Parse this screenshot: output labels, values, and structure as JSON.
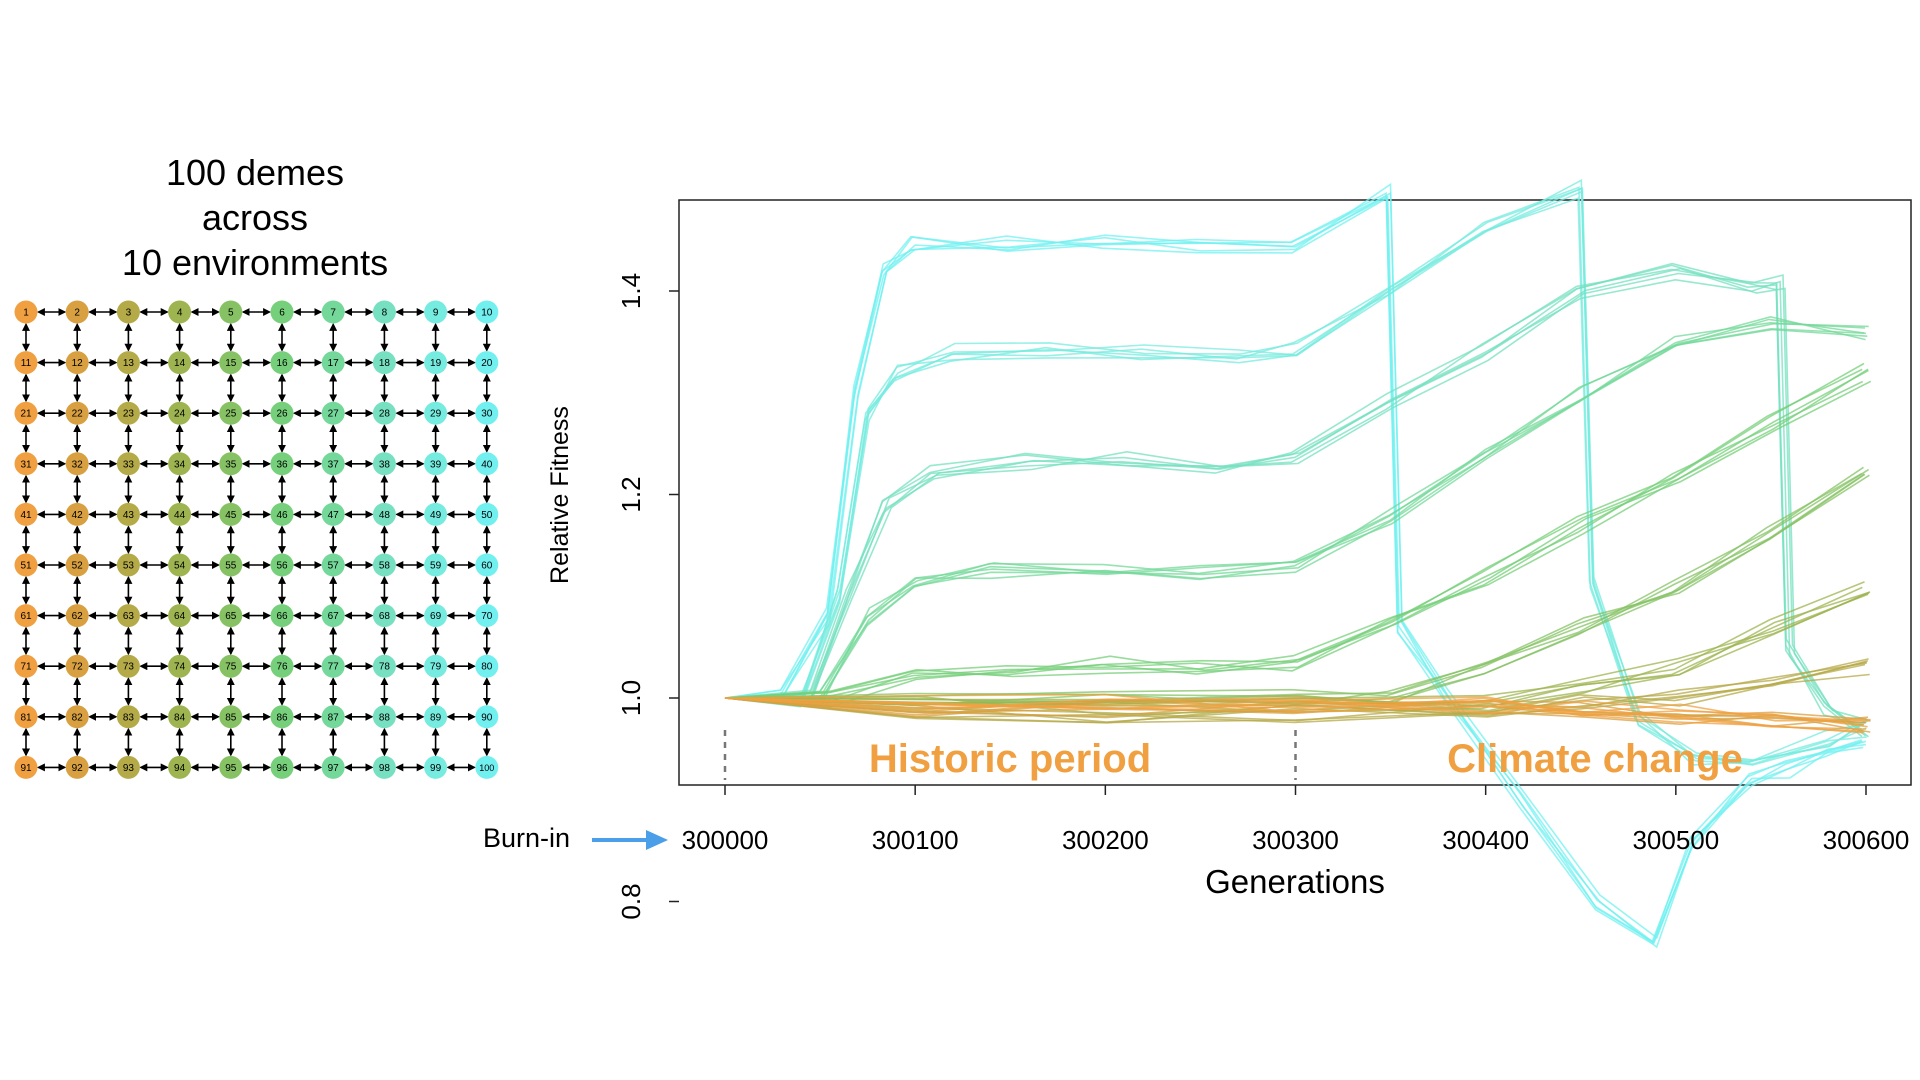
{
  "grid": {
    "title_lines": [
      "100 demes",
      "across",
      "10 environments"
    ],
    "rows": 10,
    "cols": 10,
    "env_colors": [
      "#f0a040",
      "#d8a040",
      "#b5aa48",
      "#9eb450",
      "#86c264",
      "#76cf7a",
      "#74d89a",
      "#76e0c0",
      "#76ebdf",
      "#72f0f0"
    ]
  },
  "burn_in": {
    "label": "Burn-in",
    "arrow_color": "#4a9fe8"
  },
  "period_labels": {
    "historic": "Historic period",
    "climate": "Climate change",
    "color": "#f0a040"
  },
  "chart_data": {
    "type": "line",
    "xlabel": "Generations",
    "ylabel": "Relative Fitness",
    "xlim": [
      300000,
      300600
    ],
    "ylim": [
      0.73,
      1.55
    ],
    "xticks": [
      300000,
      300100,
      300200,
      300300,
      300400,
      300500,
      300600
    ],
    "yticks": [
      0.8,
      1.0,
      1.2,
      1.4
    ],
    "ytick_labels": [
      "0.8",
      "1.0",
      "1.2",
      "1.4"
    ],
    "vlines": [
      300000,
      300300
    ],
    "series": [
      {
        "color": "#72f0f0",
        "x": [
          300000,
          300030,
          300055,
          300070,
          300085,
          300100,
          300150,
          300200,
          300250,
          300300,
          300350,
          300356,
          300380,
          300420,
          300460,
          300490,
          300510,
          300540,
          300560,
          300580,
          300600
        ],
        "y": [
          1.0,
          1.0,
          1.08,
          1.3,
          1.42,
          1.445,
          1.448,
          1.448,
          1.446,
          1.445,
          1.5,
          1.07,
          1.0,
          0.9,
          0.8,
          0.76,
          0.86,
          0.92,
          0.93,
          0.95,
          0.96
        ]
      },
      {
        "color": "#76ebdf",
        "x": [
          300000,
          300040,
          300060,
          300075,
          300090,
          300120,
          300170,
          300220,
          300270,
          300300,
          300350,
          300400,
          300450,
          300456,
          300480,
          300510,
          300540,
          300580,
          300600
        ],
        "y": [
          1.0,
          1.0,
          1.1,
          1.28,
          1.32,
          1.34,
          1.342,
          1.34,
          1.338,
          1.345,
          1.4,
          1.46,
          1.5,
          1.11,
          0.98,
          0.94,
          0.94,
          0.96,
          0.97
        ]
      },
      {
        "color": "#76e0c0",
        "x": [
          300000,
          300045,
          300065,
          300085,
          300110,
          300160,
          300210,
          300260,
          300300,
          300350,
          300400,
          300450,
          300500,
          300540,
          300555,
          300560,
          300580,
          300600
        ],
        "y": [
          1.0,
          1.0,
          1.1,
          1.19,
          1.22,
          1.232,
          1.235,
          1.23,
          1.235,
          1.29,
          1.34,
          1.4,
          1.42,
          1.4,
          1.41,
          1.05,
          0.99,
          0.97
        ]
      },
      {
        "color": "#74d89a",
        "x": [
          300000,
          300050,
          300075,
          300100,
          300140,
          300200,
          300250,
          300300,
          300350,
          300400,
          300450,
          300500,
          300550,
          300600
        ],
        "y": [
          1.0,
          1.0,
          1.08,
          1.11,
          1.125,
          1.128,
          1.125,
          1.13,
          1.18,
          1.24,
          1.3,
          1.35,
          1.37,
          1.36
        ]
      },
      {
        "color": "#76cf7a",
        "x": [
          300000,
          300055,
          300100,
          300150,
          300200,
          300250,
          300300,
          300350,
          300400,
          300450,
          300500,
          300550,
          300600
        ],
        "y": [
          1.0,
          1.0,
          1.025,
          1.03,
          1.033,
          1.032,
          1.034,
          1.07,
          1.12,
          1.17,
          1.22,
          1.27,
          1.32
        ]
      },
      {
        "color": "#86c264",
        "x": [
          300000,
          300100,
          300200,
          300300,
          300350,
          300400,
          300450,
          300500,
          300550,
          300600
        ],
        "y": [
          1.0,
          1.0,
          1.0,
          1.0,
          1.004,
          1.03,
          1.07,
          1.11,
          1.16,
          1.22
        ]
      },
      {
        "color": "#9eb450",
        "x": [
          300000,
          300100,
          300200,
          300300,
          300400,
          300450,
          300500,
          300550,
          300600
        ],
        "y": [
          1.0,
          0.993,
          0.993,
          0.995,
          0.995,
          1.01,
          1.03,
          1.07,
          1.11
        ]
      },
      {
        "color": "#b5aa48",
        "x": [
          300000,
          300100,
          300200,
          300300,
          300400,
          300450,
          300500,
          300550,
          300600
        ],
        "y": [
          1.0,
          0.985,
          0.982,
          0.985,
          0.99,
          0.995,
          1.0,
          1.015,
          1.03
        ]
      },
      {
        "color": "#d8a040",
        "x": [
          300000,
          300100,
          300200,
          300300,
          300400,
          300450,
          300500,
          300550,
          300600
        ],
        "y": [
          1.0,
          0.99,
          0.99,
          0.992,
          0.992,
          0.988,
          0.983,
          0.978,
          0.975
        ]
      },
      {
        "color": "#f0a040",
        "x": [
          300000,
          300100,
          300200,
          300300,
          300400,
          300450,
          300500,
          300550,
          300600
        ],
        "y": [
          1.0,
          0.995,
          0.995,
          0.995,
          0.993,
          0.99,
          0.985,
          0.978,
          0.97
        ]
      }
    ]
  }
}
